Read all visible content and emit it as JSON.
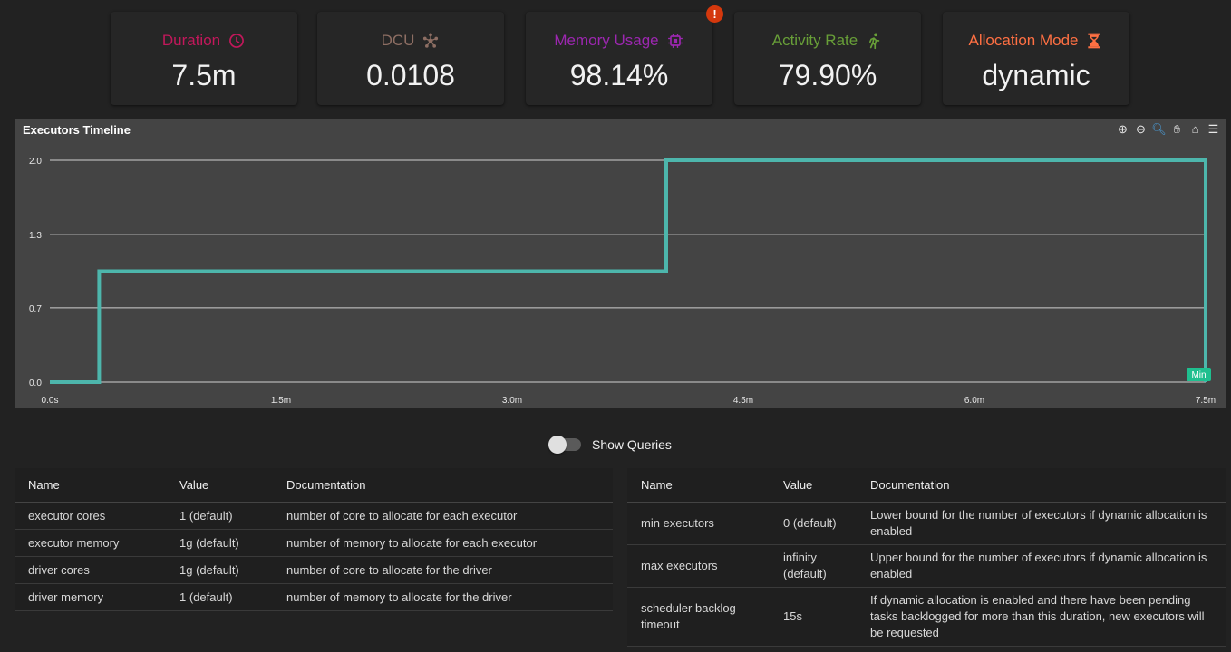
{
  "cards": [
    {
      "label": "Duration",
      "value": "7.5m",
      "color": "#c2185b",
      "icon": "clock-icon"
    },
    {
      "label": "DCU",
      "value": "0.0108",
      "color": "#8d6e63",
      "icon": "hub-icon"
    },
    {
      "label": "Memory Usage",
      "value": "98.14%",
      "color": "#9c27b0",
      "icon": "chip-icon"
    },
    {
      "label": "Activity Rate",
      "value": "79.90%",
      "color": "#689f38",
      "icon": "running-icon"
    },
    {
      "label": "Allocation Mode",
      "value": "dynamic",
      "color": "#ff7043",
      "icon": "hourglass-icon"
    }
  ],
  "alert": {
    "label": "!"
  },
  "chart": {
    "title": "Executors Timeline",
    "min_label": "Min"
  },
  "chart_data": {
    "type": "line",
    "title": "Executors Timeline",
    "step": true,
    "x_unit": "minutes",
    "x": [
      0,
      0.32,
      0.32,
      4.0,
      4.0,
      7.5,
      7.5
    ],
    "y": [
      0,
      0,
      1,
      1,
      2,
      2,
      0
    ],
    "xlim": [
      0,
      7.5
    ],
    "ylim": [
      0,
      2
    ],
    "x_ticks": [
      0,
      1.5,
      3,
      4.5,
      6,
      7.5
    ],
    "x_tick_labels": [
      "0.0s",
      "1.5m",
      "3.0m",
      "4.5m",
      "6.0m",
      "7.5m"
    ],
    "y_ticks": [
      0,
      0.67,
      1.33,
      2
    ],
    "y_tick_labels": [
      "0.0",
      "0.7",
      "1.3",
      "2.0"
    ],
    "grid": true,
    "color": "#4db6ac",
    "annotation": "Min"
  },
  "toggle": {
    "label": "Show Queries",
    "on": false
  },
  "table1": {
    "headers": [
      "Name",
      "Value",
      "Documentation"
    ],
    "rows": [
      [
        "executor cores",
        "1 (default)",
        "number of core to allocate for each executor"
      ],
      [
        "executor memory",
        "1g (default)",
        "number of memory to allocate for each executor"
      ],
      [
        "driver cores",
        "1g (default)",
        "number of core to allocate for the driver"
      ],
      [
        "driver memory",
        "1 (default)",
        "number of memory to allocate for the driver"
      ]
    ]
  },
  "table2": {
    "headers": [
      "Name",
      "Value",
      "Documentation"
    ],
    "rows": [
      [
        "min executors",
        "0 (default)",
        "Lower bound for the number of executors if dynamic allocation is enabled"
      ],
      [
        "max executors",
        "infinity (default)",
        "Upper bound for the number of executors if dynamic allocation is enabled"
      ],
      [
        "scheduler backlog timeout",
        "15s",
        "If dynamic allocation is enabled and there have been pending tasks backlogged for more than this duration, new executors will be requested"
      ]
    ]
  }
}
